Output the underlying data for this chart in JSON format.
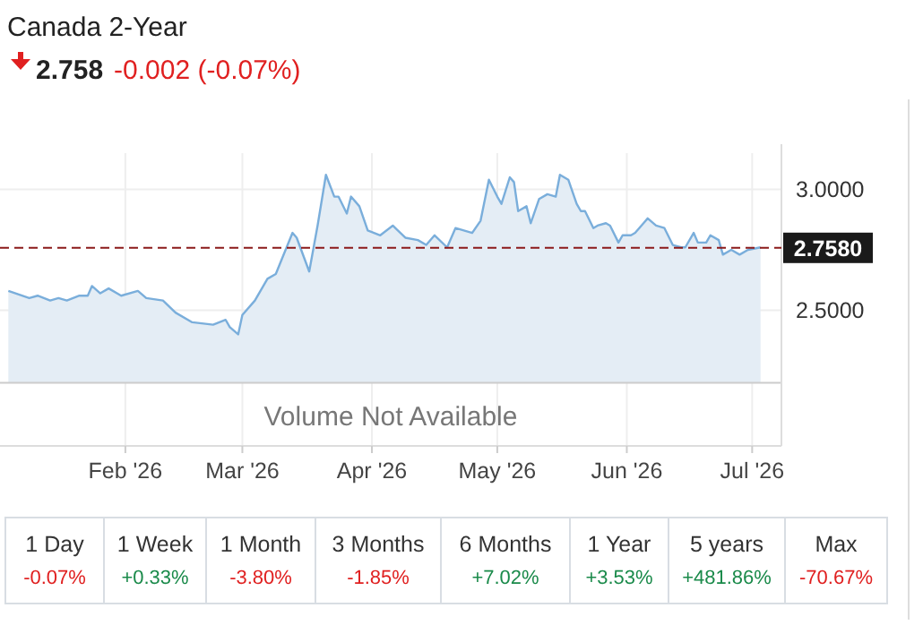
{
  "chart_data": [
    {
      "type": "area",
      "title": "Canada 2-Year",
      "subtitle": "2.758 -0.002 (-0.07%)",
      "x": [
        "2026-01-04",
        "2026-01-09",
        "2026-01-11",
        "2026-01-14",
        "2026-01-16",
        "2026-01-18",
        "2026-01-21",
        "2026-01-23",
        "2026-01-24",
        "2026-01-26",
        "2026-01-28",
        "2026-01-31",
        "2026-02-04",
        "2026-02-06",
        "2026-02-10",
        "2026-02-13",
        "2026-02-17",
        "2026-02-22",
        "2026-02-25",
        "2026-02-26",
        "2026-02-28",
        "2026-03-01",
        "2026-03-04",
        "2026-03-07",
        "2026-03-09",
        "2026-03-13",
        "2026-03-14",
        "2026-03-17",
        "2026-03-19",
        "2026-03-21",
        "2026-03-23",
        "2026-03-24",
        "2026-03-26",
        "2026-03-27",
        "2026-03-29",
        "2026-03-31",
        "2026-04-03",
        "2026-04-06",
        "2026-04-09",
        "2026-04-12",
        "2026-04-14",
        "2026-04-16",
        "2026-04-19",
        "2026-04-21",
        "2026-04-25",
        "2026-04-27",
        "2026-04-29",
        "2026-05-01",
        "2026-05-02",
        "2026-05-04",
        "2026-05-05",
        "2026-05-06",
        "2026-05-08",
        "2026-05-09",
        "2026-05-11",
        "2026-05-13",
        "2026-05-15",
        "2026-05-16",
        "2026-05-18",
        "2026-05-20",
        "2026-05-21",
        "2026-05-22",
        "2026-05-24",
        "2026-05-25",
        "2026-05-27",
        "2026-05-28",
        "2026-05-30",
        "2026-05-31",
        "2026-06-02",
        "2026-06-03",
        "2026-06-05",
        "2026-06-06",
        "2026-06-08",
        "2026-06-10",
        "2026-06-12",
        "2026-06-14",
        "2026-06-15",
        "2026-06-17",
        "2026-06-18",
        "2026-06-20",
        "2026-06-21",
        "2026-06-23",
        "2026-06-24",
        "2026-06-26",
        "2026-06-28",
        "2026-06-30",
        "2026-07-03"
      ],
      "series": [
        {
          "color": "#7aaedb",
          "values": [
            2.58,
            2.55,
            2.56,
            2.54,
            2.55,
            2.54,
            2.56,
            2.56,
            2.6,
            2.57,
            2.59,
            2.56,
            2.58,
            2.55,
            2.54,
            2.49,
            2.45,
            2.44,
            2.46,
            2.43,
            2.4,
            2.48,
            2.54,
            2.63,
            2.65,
            2.82,
            2.8,
            2.66,
            2.85,
            3.06,
            2.97,
            2.97,
            2.9,
            2.97,
            2.93,
            2.83,
            2.81,
            2.85,
            2.8,
            2.79,
            2.77,
            2.81,
            2.76,
            2.84,
            2.82,
            2.87,
            3.04,
            2.97,
            2.94,
            3.05,
            3.03,
            2.91,
            2.93,
            2.86,
            2.96,
            2.98,
            2.97,
            3.06,
            3.04,
            2.94,
            2.91,
            2.91,
            2.84,
            2.85,
            2.86,
            2.85,
            2.78,
            2.81,
            2.81,
            2.82,
            2.86,
            2.88,
            2.85,
            2.84,
            2.77,
            2.76,
            2.76,
            2.82,
            2.78,
            2.78,
            2.81,
            2.79,
            2.73,
            2.75,
            2.73,
            2.75,
            2.76
          ]
        }
      ],
      "xlim": [
        "2026-01-02",
        "2026-07-08"
      ],
      "xticks": [
        {
          "value": "2026-02-01",
          "label": "Feb '26"
        },
        {
          "value": "2026-03-01",
          "label": "Mar '26"
        },
        {
          "value": "2026-04-01",
          "label": "Apr '26"
        },
        {
          "value": "2026-05-01",
          "label": "May '26"
        },
        {
          "value": "2026-06-01",
          "label": "Jun '26"
        },
        {
          "value": "2026-07-01",
          "label": "Jul '26"
        }
      ],
      "ylim": [
        2.2,
        3.15
      ],
      "yticks": [
        {
          "value": 2.5,
          "label": "2.5000"
        },
        {
          "value": 3,
          "label": "3.0000"
        }
      ],
      "ref_lines": [
        {
          "axis": "y",
          "value": 2.758,
          "label": "2.7580",
          "color": "#8b1a1a",
          "line_style": "dashed"
        }
      ],
      "annotations": [
        "Volume Not Available"
      ],
      "grid": true,
      "marker": "none",
      "line_style": "solid"
    },
    {
      "type": "other",
      "categories": [
        "1 Day",
        "1 Week",
        "1 Month",
        "3 Months",
        "6 Months",
        "1 Year",
        "5 years",
        "Max"
      ],
      "value_labels": [
        "-0.07%",
        "+0.33%",
        "-3.80%",
        "-1.85%",
        "+7.02%",
        "+3.53%",
        "+481.86%",
        "-70.67%"
      ]
    }
  ]
}
